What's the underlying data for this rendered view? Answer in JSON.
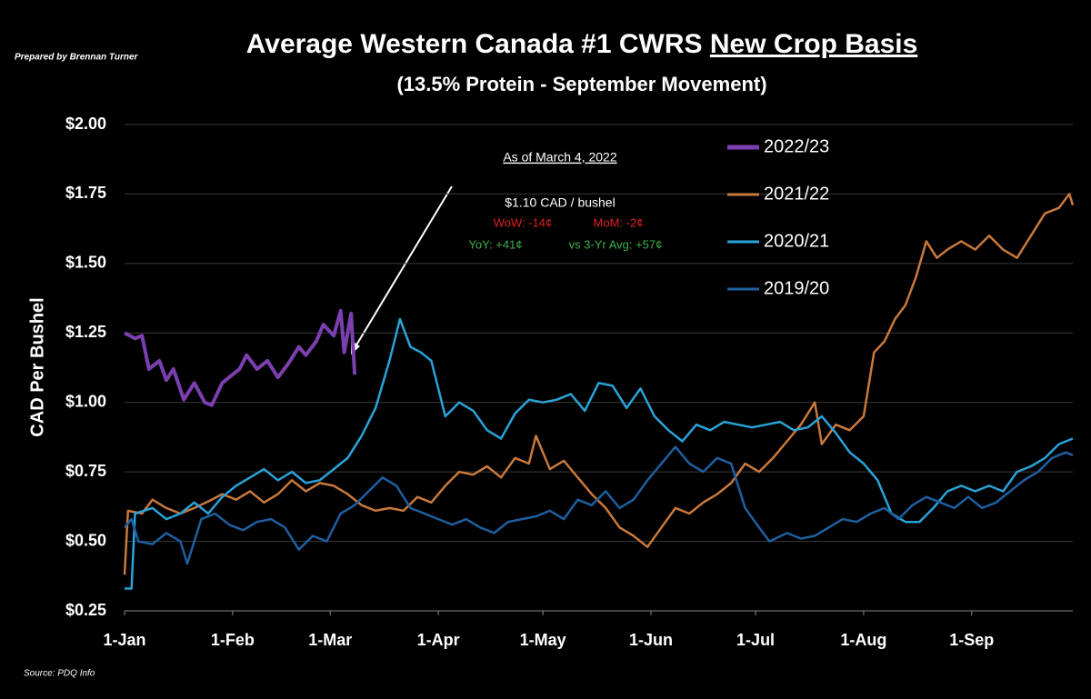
{
  "chart_data": {
    "type": "line",
    "title": "Average Western Canada #1 CWRS",
    "title_emphasis": "New Crop Basis",
    "subtitle": "(13.5% Protein - September Movement)",
    "credit": "Prepared by Brennan Turner",
    "source": "Source: PDQ Info",
    "y_label": "CAD Per Bushel",
    "annotation": {
      "heading": "As of March 4, 2022",
      "price": "$1.10 CAD / bushel",
      "wow": "WoW: -14¢",
      "mom": "MoM: -2¢",
      "yoy": "YoY: +41¢",
      "avg": "vs 3-Yr Avg: +57¢"
    },
    "xlim": [
      0,
      272
    ],
    "xticks": [
      {
        "value": 0,
        "label": "1-Jan"
      },
      {
        "value": 31,
        "label": "1-Feb"
      },
      {
        "value": 59,
        "label": "1-Mar"
      },
      {
        "value": 90,
        "label": "1-Apr"
      },
      {
        "value": 120,
        "label": "1-May"
      },
      {
        "value": 151,
        "label": "1-Jun"
      },
      {
        "value": 181,
        "label": "1-Jul"
      },
      {
        "value": 212,
        "label": "1-Aug"
      },
      {
        "value": 243,
        "label": "1-Sep"
      }
    ],
    "ylim": [
      0.25,
      2.0
    ],
    "yticks": [
      {
        "value": 0.25,
        "label": "$0.25"
      },
      {
        "value": 0.5,
        "label": "$0.50"
      },
      {
        "value": 0.75,
        "label": "$0.75"
      },
      {
        "value": 1.0,
        "label": "$1.00"
      },
      {
        "value": 1.25,
        "label": "$1.25"
      },
      {
        "value": 1.5,
        "label": "$1.50"
      },
      {
        "value": 1.75,
        "label": "$1.75"
      },
      {
        "value": 2.0,
        "label": "$2.00"
      }
    ],
    "grid": true,
    "legend": "upper right",
    "series": [
      {
        "name": "2022/23",
        "color": "#7b3fb0",
        "x": [
          0,
          3,
          5,
          7,
          10,
          12,
          14,
          17,
          20,
          23,
          25,
          28,
          31,
          33,
          35,
          38,
          41,
          44,
          47,
          50,
          52,
          55,
          57,
          60,
          62,
          63,
          65,
          66
        ],
        "values": [
          1.25,
          1.23,
          1.24,
          1.12,
          1.15,
          1.08,
          1.12,
          1.01,
          1.07,
          1.0,
          0.99,
          1.07,
          1.1,
          1.12,
          1.17,
          1.12,
          1.15,
          1.09,
          1.14,
          1.2,
          1.17,
          1.22,
          1.28,
          1.24,
          1.33,
          1.18,
          1.32,
          1.1
        ]
      },
      {
        "name": "2021/22",
        "color": "#c8793c",
        "x": [
          0,
          1,
          5,
          8,
          12,
          16,
          20,
          25,
          28,
          32,
          36,
          40,
          44,
          48,
          52,
          56,
          60,
          64,
          68,
          72,
          76,
          80,
          84,
          88,
          92,
          96,
          100,
          104,
          108,
          112,
          116,
          118,
          122,
          126,
          130,
          134,
          138,
          142,
          146,
          150,
          154,
          158,
          162,
          166,
          170,
          174,
          178,
          182,
          186,
          190,
          194,
          198,
          200,
          204,
          208,
          212,
          215,
          218,
          221,
          224,
          227,
          230,
          233,
          236,
          240,
          244,
          248,
          252,
          256,
          260,
          264,
          268,
          271,
          272
        ],
        "values": [
          0.38,
          0.61,
          0.6,
          0.65,
          0.62,
          0.6,
          0.62,
          0.65,
          0.67,
          0.65,
          0.68,
          0.64,
          0.67,
          0.72,
          0.68,
          0.71,
          0.7,
          0.67,
          0.63,
          0.61,
          0.62,
          0.61,
          0.66,
          0.64,
          0.7,
          0.75,
          0.74,
          0.77,
          0.73,
          0.8,
          0.78,
          0.88,
          0.76,
          0.79,
          0.73,
          0.67,
          0.62,
          0.55,
          0.52,
          0.48,
          0.55,
          0.62,
          0.6,
          0.64,
          0.67,
          0.71,
          0.78,
          0.75,
          0.8,
          0.86,
          0.92,
          1.0,
          0.85,
          0.92,
          0.9,
          0.95,
          1.18,
          1.22,
          1.3,
          1.35,
          1.45,
          1.58,
          1.52,
          1.55,
          1.58,
          1.55,
          1.6,
          1.55,
          1.52,
          1.6,
          1.68,
          1.7,
          1.75,
          1.71
        ]
      },
      {
        "name": "2020/21",
        "color": "#2aa3d8",
        "x": [
          0,
          2,
          3,
          8,
          12,
          16,
          20,
          24,
          28,
          32,
          36,
          40,
          44,
          48,
          52,
          56,
          60,
          64,
          68,
          72,
          76,
          79,
          82,
          85,
          88,
          92,
          96,
          100,
          104,
          108,
          112,
          116,
          120,
          124,
          128,
          132,
          136,
          140,
          144,
          148,
          152,
          156,
          160,
          164,
          168,
          172,
          176,
          180,
          184,
          188,
          192,
          196,
          200,
          204,
          208,
          212,
          216,
          220,
          224,
          228,
          232,
          236,
          240,
          244,
          248,
          252,
          256,
          260,
          264,
          268,
          272
        ],
        "values": [
          0.33,
          0.33,
          0.6,
          0.62,
          0.58,
          0.6,
          0.64,
          0.6,
          0.66,
          0.7,
          0.73,
          0.76,
          0.72,
          0.75,
          0.71,
          0.72,
          0.76,
          0.8,
          0.88,
          0.98,
          1.15,
          1.3,
          1.2,
          1.18,
          1.15,
          0.95,
          1.0,
          0.97,
          0.9,
          0.87,
          0.96,
          1.01,
          1.0,
          1.01,
          1.03,
          0.97,
          1.07,
          1.06,
          0.98,
          1.05,
          0.95,
          0.9,
          0.86,
          0.92,
          0.9,
          0.93,
          0.92,
          0.91,
          0.92,
          0.93,
          0.9,
          0.91,
          0.95,
          0.89,
          0.82,
          0.78,
          0.72,
          0.6,
          0.57,
          0.57,
          0.62,
          0.68,
          0.7,
          0.68,
          0.7,
          0.68,
          0.75,
          0.77,
          0.8,
          0.85,
          0.87
        ]
      },
      {
        "name": "2019/20",
        "color": "#1f5fa0",
        "x": [
          0,
          2,
          4,
          8,
          12,
          16,
          18,
          22,
          26,
          30,
          34,
          38,
          42,
          46,
          50,
          54,
          58,
          62,
          66,
          70,
          74,
          78,
          82,
          86,
          90,
          94,
          98,
          102,
          106,
          110,
          114,
          118,
          122,
          126,
          130,
          134,
          138,
          142,
          146,
          150,
          154,
          158,
          162,
          166,
          170,
          174,
          178,
          182,
          185,
          190,
          194,
          198,
          202,
          206,
          210,
          214,
          218,
          222,
          226,
          230,
          234,
          238,
          242,
          246,
          250,
          254,
          258,
          262,
          266,
          270,
          272
        ],
        "values": [
          0.55,
          0.58,
          0.5,
          0.49,
          0.53,
          0.5,
          0.42,
          0.58,
          0.6,
          0.56,
          0.54,
          0.57,
          0.58,
          0.55,
          0.47,
          0.52,
          0.5,
          0.6,
          0.63,
          0.68,
          0.73,
          0.7,
          0.62,
          0.6,
          0.58,
          0.56,
          0.58,
          0.55,
          0.53,
          0.57,
          0.58,
          0.59,
          0.61,
          0.58,
          0.65,
          0.63,
          0.68,
          0.62,
          0.65,
          0.72,
          0.78,
          0.84,
          0.78,
          0.75,
          0.8,
          0.78,
          0.62,
          0.55,
          0.5,
          0.53,
          0.51,
          0.52,
          0.55,
          0.58,
          0.57,
          0.6,
          0.62,
          0.58,
          0.63,
          0.66,
          0.64,
          0.62,
          0.66,
          0.62,
          0.64,
          0.68,
          0.72,
          0.75,
          0.8,
          0.82,
          0.81
        ]
      }
    ]
  }
}
